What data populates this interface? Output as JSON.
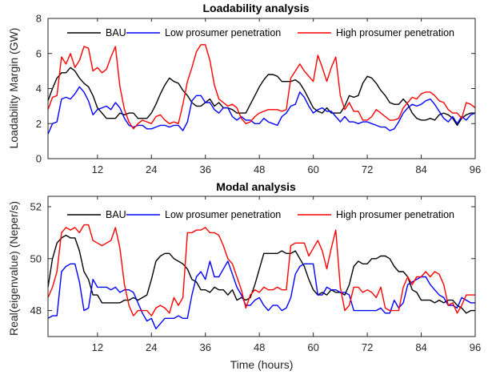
{
  "colors": {
    "bau": "#000000",
    "low": "#0000ff",
    "high": "#ff0000"
  },
  "chart_data": [
    {
      "type": "line",
      "title": "Loadability analysis",
      "xlabel": "",
      "ylabel": "Loadability Margin (GW)",
      "xlim": [
        1,
        96
      ],
      "ylim": [
        0,
        8
      ],
      "xticks": [
        12,
        24,
        36,
        48,
        60,
        72,
        84,
        96
      ],
      "yticks": [
        0,
        2,
        4,
        6,
        8
      ],
      "legend": "top",
      "series": [
        {
          "name": "BAU",
          "color": "#000000",
          "values": [
            3.3,
            4.0,
            4.6,
            4.9,
            4.9,
            5.2,
            5.0,
            4.6,
            4.3,
            4.1,
            3.6,
            2.9,
            2.6,
            2.3,
            2.3,
            2.3,
            2.6,
            2.5,
            2.6,
            2.6,
            2.3,
            2.3,
            2.3,
            2.6,
            3.1,
            3.7,
            4.2,
            4.6,
            4.4,
            4.3,
            3.9,
            3.6,
            3.2,
            3.0,
            3.0,
            3.2,
            3.4,
            3.0,
            3.2,
            2.9,
            2.9,
            2.8,
            2.6,
            2.6,
            2.6,
            3.1,
            3.6,
            4.1,
            4.5,
            4.8,
            4.8,
            4.7,
            4.4,
            4.4,
            4.4,
            4.5,
            4.3,
            3.9,
            3.4,
            2.9,
            2.7,
            2.6,
            2.9,
            2.6,
            2.6,
            2.6,
            3.0,
            3.6,
            3.5,
            3.6,
            4.3,
            4.7,
            4.6,
            4.3,
            3.9,
            3.6,
            3.2,
            3.1,
            3.1,
            3.4,
            3.1,
            2.6,
            2.3,
            2.2,
            2.2,
            2.3,
            2.2,
            2.5,
            2.6,
            2.5,
            2.3,
            1.9,
            2.3,
            2.5,
            2.6,
            2.6
          ]
        },
        {
          "name": "Low prosumer penetration",
          "color": "#0000ff",
          "values": [
            1.4,
            2.0,
            2.1,
            3.4,
            3.5,
            3.4,
            3.7,
            4.1,
            3.8,
            3.3,
            2.5,
            2.8,
            2.9,
            3.0,
            2.8,
            3.2,
            2.9,
            2.3,
            1.9,
            1.8,
            1.9,
            1.9,
            1.7,
            1.7,
            1.8,
            1.9,
            1.9,
            1.8,
            1.9,
            1.9,
            1.6,
            2.1,
            3.3,
            3.6,
            3.6,
            3.2,
            3.2,
            2.8,
            2.6,
            2.9,
            2.9,
            2.4,
            2.2,
            2.4,
            2.2,
            2.2,
            2.0,
            2.0,
            2.3,
            2.1,
            2.0,
            1.9,
            2.4,
            2.6,
            3.0,
            3.1,
            3.8,
            3.5,
            3.0,
            2.6,
            2.8,
            2.9,
            2.7,
            2.7,
            2.4,
            2.1,
            2.4,
            2.1,
            2.1,
            2.0,
            2.1,
            2.1,
            2.0,
            1.9,
            1.8,
            1.8,
            1.6,
            1.7,
            2.1,
            2.6,
            2.9,
            3.1,
            3.0,
            3.1,
            3.3,
            3.4,
            3.1,
            2.7,
            2.3,
            2.1,
            2.4,
            2.0,
            2.4,
            2.2,
            2.5,
            2.6
          ]
        },
        {
          "name": "High prosumer penetration",
          "color": "#ff0000",
          "values": [
            2.8,
            3.5,
            3.6,
            5.8,
            5.4,
            6.0,
            5.2,
            5.6,
            6.4,
            6.3,
            5.0,
            5.2,
            4.9,
            5.1,
            5.8,
            6.4,
            4.1,
            2.8,
            2.1,
            1.7,
            2.0,
            2.2,
            2.1,
            2.0,
            2.4,
            2.5,
            2.2,
            2.0,
            2.1,
            2.0,
            3.1,
            4.4,
            5.2,
            6.1,
            6.5,
            6.5,
            5.6,
            4.2,
            3.4,
            3.2,
            3.0,
            3.1,
            2.9,
            2.3,
            2.0,
            2.1,
            2.4,
            2.6,
            2.7,
            2.8,
            2.8,
            2.8,
            2.7,
            2.8,
            4.6,
            5.0,
            5.4,
            5.0,
            4.7,
            4.4,
            5.9,
            5.2,
            4.4,
            5.2,
            5.8,
            3.6,
            2.8,
            3.2,
            2.7,
            2.7,
            2.2,
            2.2,
            2.4,
            2.8,
            2.6,
            2.4,
            2.2,
            2.2,
            2.3,
            2.9,
            3.2,
            3.5,
            3.4,
            3.7,
            3.8,
            3.8,
            3.6,
            3.3,
            3.2,
            2.8,
            2.6,
            2.6,
            2.3,
            3.2,
            3.1,
            2.9
          ]
        }
      ]
    },
    {
      "type": "line",
      "title": "Modal analysis",
      "xlabel": "Time (hours)",
      "ylabel": "Real(eigenvalue) (Neper/s)",
      "xlim": [
        1,
        96
      ],
      "ylim": [
        47,
        52.4
      ],
      "xticks": [
        12,
        24,
        36,
        48,
        60,
        72,
        84,
        96
      ],
      "yticks": [
        48,
        50,
        52
      ],
      "legend": "top",
      "series": [
        {
          "name": "BAU",
          "color": "#000000",
          "values": [
            48.9,
            50.0,
            50.6,
            50.8,
            50.9,
            50.8,
            50.8,
            50.3,
            49.5,
            49.2,
            48.6,
            48.6,
            48.3,
            48.3,
            48.3,
            48.3,
            48.3,
            48.4,
            48.4,
            48.5,
            48.4,
            48.5,
            48.6,
            49.2,
            49.9,
            50.1,
            50.2,
            50.2,
            50.0,
            49.9,
            49.8,
            49.6,
            49.2,
            49.1,
            48.8,
            48.8,
            48.7,
            48.9,
            48.8,
            48.8,
            48.6,
            48.8,
            48.4,
            48.5,
            48.4,
            48.5,
            49.0,
            49.6,
            50.2,
            50.2,
            50.2,
            50.2,
            50.3,
            50.2,
            50.2,
            50.3,
            50.0,
            49.7,
            49.2,
            48.8,
            48.6,
            48.7,
            48.6,
            48.8,
            48.7,
            48.7,
            48.6,
            49.0,
            49.7,
            49.9,
            49.8,
            49.8,
            50.0,
            50.0,
            50.1,
            50.1,
            50.0,
            49.7,
            49.5,
            49.5,
            49.3,
            48.8,
            48.7,
            48.4,
            48.4,
            48.4,
            48.3,
            48.4,
            48.3,
            48.4,
            48.4,
            48.2,
            48.1,
            47.9,
            48.0,
            48.0
          ]
        },
        {
          "name": "Low prosumer penetration",
          "color": "#0000ff",
          "values": [
            47.7,
            47.8,
            47.8,
            49.5,
            49.7,
            49.8,
            49.8,
            49.1,
            48.0,
            48.1,
            49.2,
            48.9,
            48.9,
            48.9,
            48.8,
            48.9,
            48.7,
            48.8,
            48.8,
            48.7,
            48.3,
            47.9,
            47.6,
            47.7,
            47.3,
            47.5,
            47.7,
            47.7,
            47.7,
            47.8,
            47.7,
            47.7,
            48.6,
            49.3,
            49.5,
            49.2,
            49.9,
            49.3,
            49.3,
            49.6,
            49.9,
            49.4,
            48.9,
            48.6,
            48.2,
            48.2,
            48.4,
            48.5,
            48.2,
            48.0,
            48.2,
            48.2,
            48.0,
            48.1,
            48.5,
            49.4,
            49.7,
            49.8,
            49.8,
            49.8,
            48.6,
            48.6,
            48.9,
            48.8,
            48.8,
            48.7,
            48.7,
            48.6,
            48.0,
            48.0,
            48.0,
            48.0,
            48.0,
            48.0,
            48.1,
            47.9,
            47.9,
            48.4,
            48.1,
            48.3,
            49.0,
            49.1,
            49.2,
            49.3,
            49.3,
            49.0,
            48.8,
            48.6,
            48.5,
            48.2,
            48.2,
            48.1,
            48.5,
            48.4,
            48.3,
            48.3
          ]
        },
        {
          "name": "High prosumer penetration",
          "color": "#ff0000",
          "values": [
            48.5,
            48.9,
            49.5,
            51.0,
            51.2,
            51.1,
            51.2,
            51.0,
            51.3,
            51.3,
            50.7,
            50.6,
            50.5,
            50.6,
            50.7,
            51.2,
            50.4,
            49.0,
            48.2,
            47.8,
            48.0,
            48.0,
            48.0,
            47.8,
            48.1,
            48.2,
            48.1,
            47.9,
            48.5,
            48.2,
            48.5,
            51.0,
            51.0,
            51.1,
            51.1,
            51.2,
            51.0,
            51.0,
            50.9,
            50.5,
            50.0,
            49.8,
            49.3,
            48.8,
            48.1,
            48.6,
            48.8,
            48.7,
            48.9,
            48.8,
            48.8,
            48.9,
            48.8,
            48.8,
            50.5,
            50.6,
            50.6,
            50.6,
            50.1,
            50.4,
            50.7,
            50.3,
            49.6,
            50.4,
            51.1,
            48.9,
            48.0,
            48.2,
            48.9,
            48.9,
            48.7,
            48.8,
            48.7,
            48.5,
            48.9,
            48.1,
            48.0,
            48.0,
            48.0,
            48.9,
            49.3,
            49.0,
            49.3,
            49.3,
            49.5,
            49.3,
            49.5,
            49.4,
            49.0,
            48.2,
            48.3,
            47.9,
            48.2,
            48.6,
            48.6,
            48.6
          ]
        }
      ]
    }
  ]
}
